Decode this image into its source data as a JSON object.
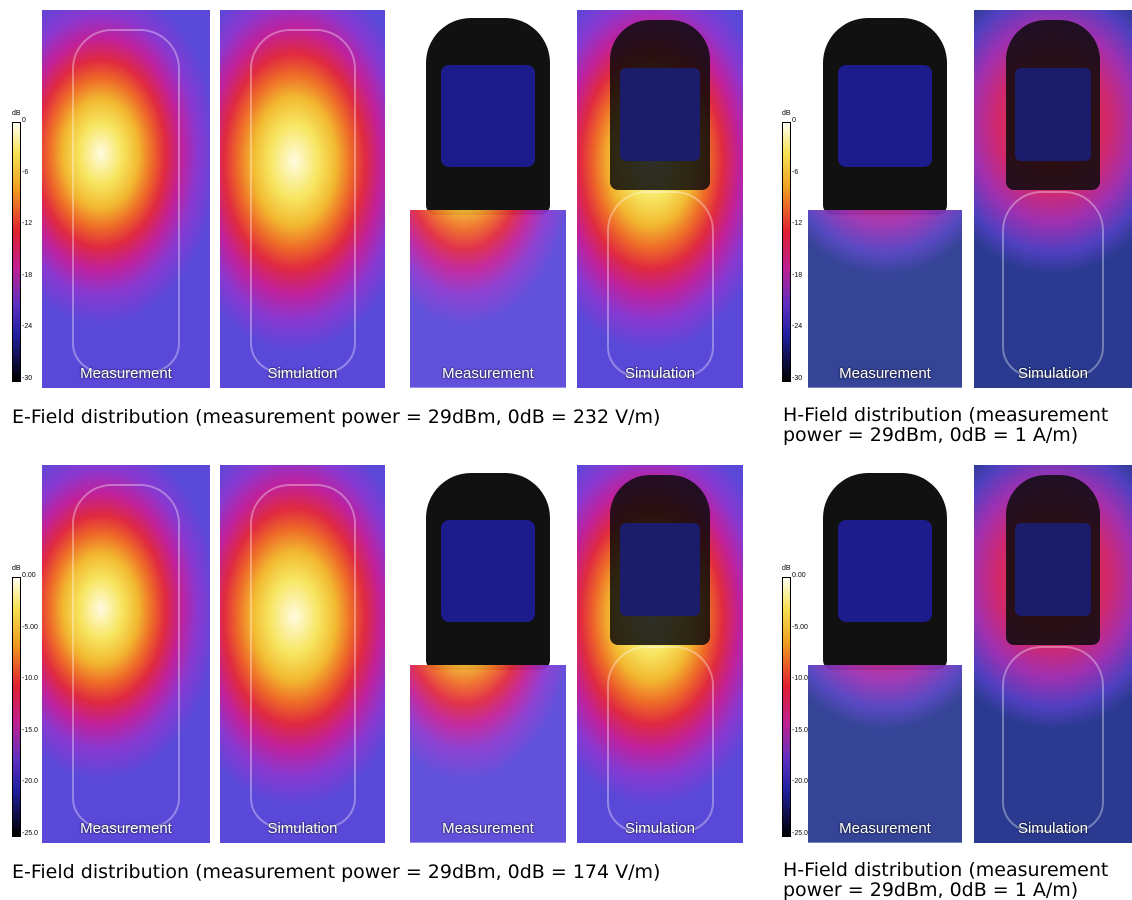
{
  "rows": [
    {
      "panels": [
        {
          "label": "Measurement"
        },
        {
          "label": "Simulation"
        },
        {
          "label": "Measurement"
        },
        {
          "label": "Simulation"
        },
        {
          "label": "Measurement"
        },
        {
          "label": "Simulation"
        }
      ],
      "colorbars": [
        {
          "unit": "dB",
          "ticks": [
            "0",
            "-6",
            "-12",
            "-18",
            "-24",
            "-30"
          ]
        },
        {
          "unit": "dB",
          "ticks": [
            "0",
            "-6",
            "-12",
            "-18",
            "-24",
            "-30"
          ]
        }
      ],
      "e_caption": "E-Field distribution (measurement power = 29dBm, 0dB = 232 V/m)",
      "h_caption": "H-Field distribution (measurement power = 29dBm, 0dB = 1 A/m)"
    },
    {
      "panels": [
        {
          "label": "Measurement"
        },
        {
          "label": "Simulation"
        },
        {
          "label": "Measurement"
        },
        {
          "label": "Simulation"
        },
        {
          "label": "Measurement"
        },
        {
          "label": "Simulation"
        }
      ],
      "colorbars": [
        {
          "unit": "dB",
          "ticks": [
            "0.00",
            "-5.00",
            "-10.0",
            "-15.0",
            "-20.0",
            "-25.0"
          ]
        },
        {
          "unit": "dB",
          "ticks": [
            "0.00",
            "-5.00",
            "-10.0",
            "-15.0",
            "-20.0",
            "-25.0"
          ]
        }
      ],
      "e_caption": "E-Field distribution (measurement power = 29dBm, 0dB = 174 V/m)",
      "h_caption": "H-Field distribution (measurement power = 29dBm, 0dB = 1 A/m)"
    }
  ]
}
